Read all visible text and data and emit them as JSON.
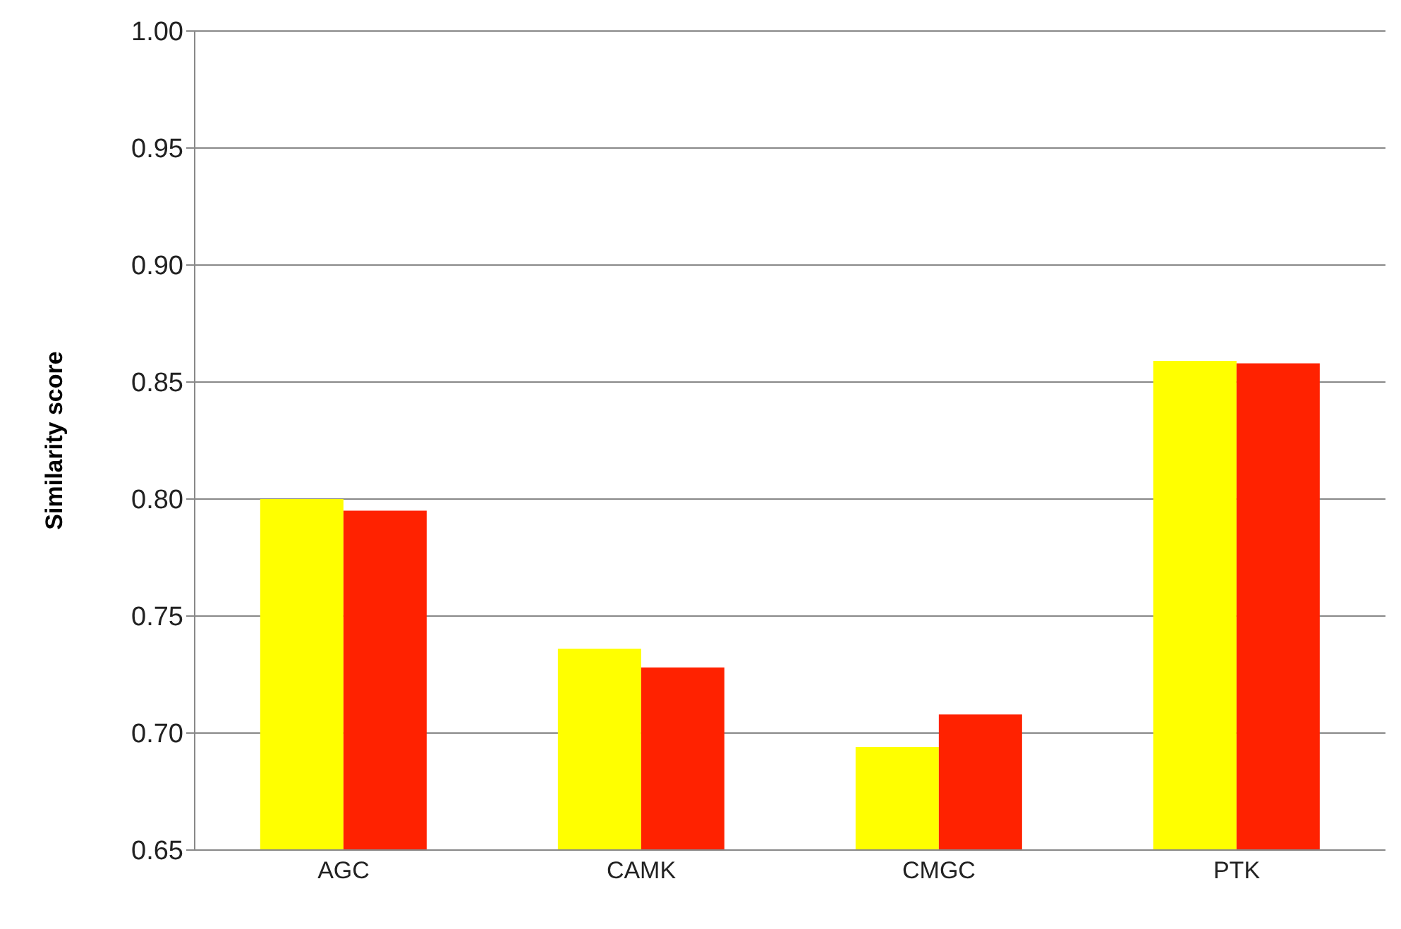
{
  "chart_data": {
    "type": "bar",
    "ylabel": "Similarity score",
    "categories": [
      "AGC",
      "CAMK",
      "CMGC",
      "PTK"
    ],
    "series": [
      {
        "color": "#ffff00",
        "values": [
          0.8,
          0.736,
          0.694,
          0.859
        ]
      },
      {
        "color": "#ff2200",
        "values": [
          0.795,
          0.728,
          0.708,
          0.858
        ]
      }
    ],
    "ylim": [
      0.65,
      1.0
    ],
    "yticks": [
      {
        "value": 0.65,
        "label": "0.65"
      },
      {
        "value": 0.7,
        "label": "0.70"
      },
      {
        "value": 0.75,
        "label": "0.75"
      },
      {
        "value": 0.8,
        "label": "0.80"
      },
      {
        "value": 0.85,
        "label": "0.85"
      },
      {
        "value": 0.9,
        "label": "0.90"
      },
      {
        "value": 0.95,
        "label": "0.95"
      },
      {
        "value": 1.0,
        "label": "1.00"
      }
    ],
    "grid": "y",
    "legend": false
  }
}
